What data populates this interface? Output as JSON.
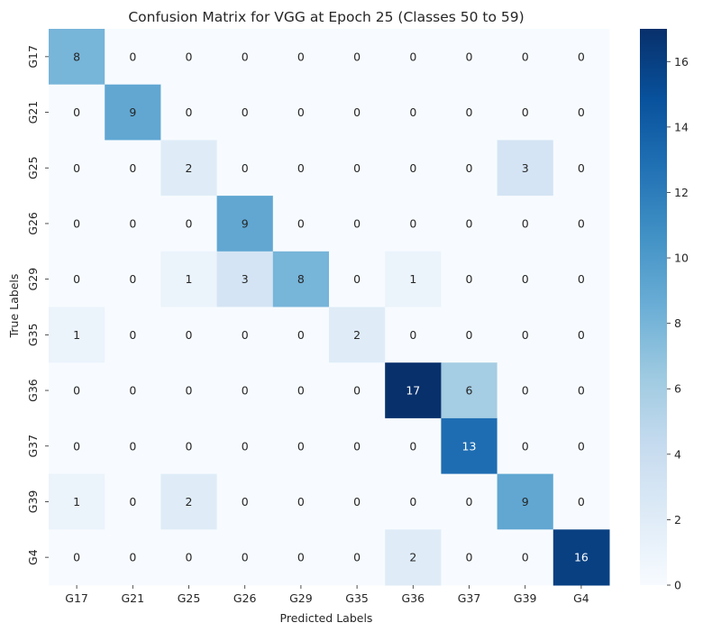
{
  "chart_data": {
    "type": "heatmap",
    "title": "Confusion Matrix for VGG at Epoch 25 (Classes 50 to 59)",
    "xlabel": "Predicted Labels",
    "ylabel": "True Labels",
    "x_categories": [
      "G17",
      "G21",
      "G25",
      "G26",
      "G29",
      "G35",
      "G36",
      "G37",
      "G39",
      "G4"
    ],
    "y_categories": [
      "G17",
      "G21",
      "G25",
      "G26",
      "G29",
      "G35",
      "G36",
      "G37",
      "G39",
      "G4"
    ],
    "values": [
      [
        8,
        0,
        0,
        0,
        0,
        0,
        0,
        0,
        0,
        0
      ],
      [
        0,
        9,
        0,
        0,
        0,
        0,
        0,
        0,
        0,
        0
      ],
      [
        0,
        0,
        2,
        0,
        0,
        0,
        0,
        0,
        3,
        0
      ],
      [
        0,
        0,
        0,
        9,
        0,
        0,
        0,
        0,
        0,
        0
      ],
      [
        0,
        0,
        1,
        3,
        8,
        0,
        1,
        0,
        0,
        0
      ],
      [
        1,
        0,
        0,
        0,
        0,
        2,
        0,
        0,
        0,
        0
      ],
      [
        0,
        0,
        0,
        0,
        0,
        0,
        17,
        6,
        0,
        0
      ],
      [
        0,
        0,
        0,
        0,
        0,
        0,
        0,
        13,
        0,
        0
      ],
      [
        1,
        0,
        2,
        0,
        0,
        0,
        0,
        0,
        9,
        0
      ],
      [
        0,
        0,
        0,
        0,
        0,
        0,
        2,
        0,
        0,
        16
      ]
    ],
    "colorbar": {
      "min": 0,
      "max": 17,
      "ticks": [
        0,
        2,
        4,
        6,
        8,
        10,
        12,
        14,
        16
      ],
      "colormap": "Blues"
    }
  }
}
